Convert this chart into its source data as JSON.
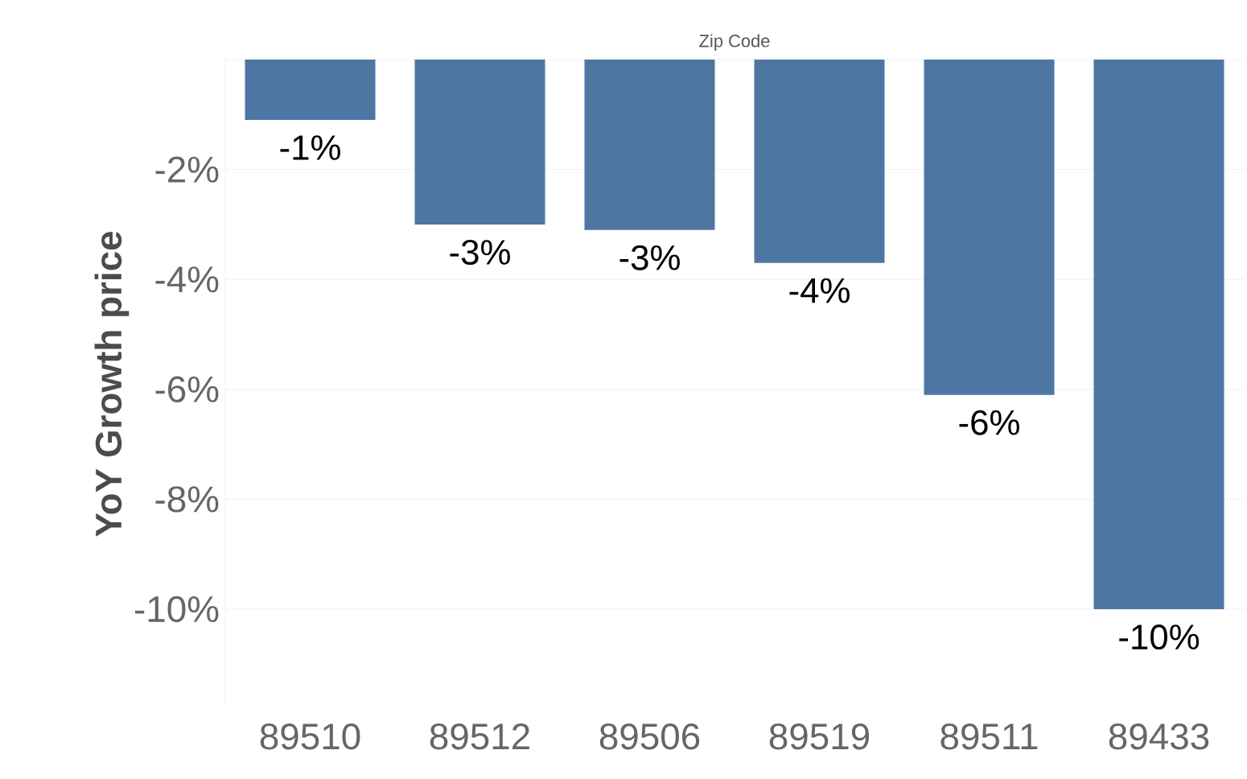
{
  "chart_data": {
    "type": "bar",
    "xlabel": "Zip Code",
    "ylabel": "YoY Growth price",
    "categories": [
      "89510",
      "89512",
      "89506",
      "89519",
      "89511",
      "89433"
    ],
    "values": [
      -1.1,
      -3.0,
      -3.1,
      -3.7,
      -6.1,
      -10.0
    ],
    "value_labels": [
      "-1%",
      "-3%",
      "-3%",
      "-4%",
      "-6%",
      "-10%"
    ],
    "color": "#4e76a3",
    "ylim": [
      -11.8,
      0
    ],
    "yticks": [
      {
        "value": -2,
        "label": "-2%"
      },
      {
        "value": -4,
        "label": "-4%"
      },
      {
        "value": -6,
        "label": "-6%"
      },
      {
        "value": -8,
        "label": "-8%"
      },
      {
        "value": -10,
        "label": "-10%"
      }
    ],
    "grid": "y"
  }
}
